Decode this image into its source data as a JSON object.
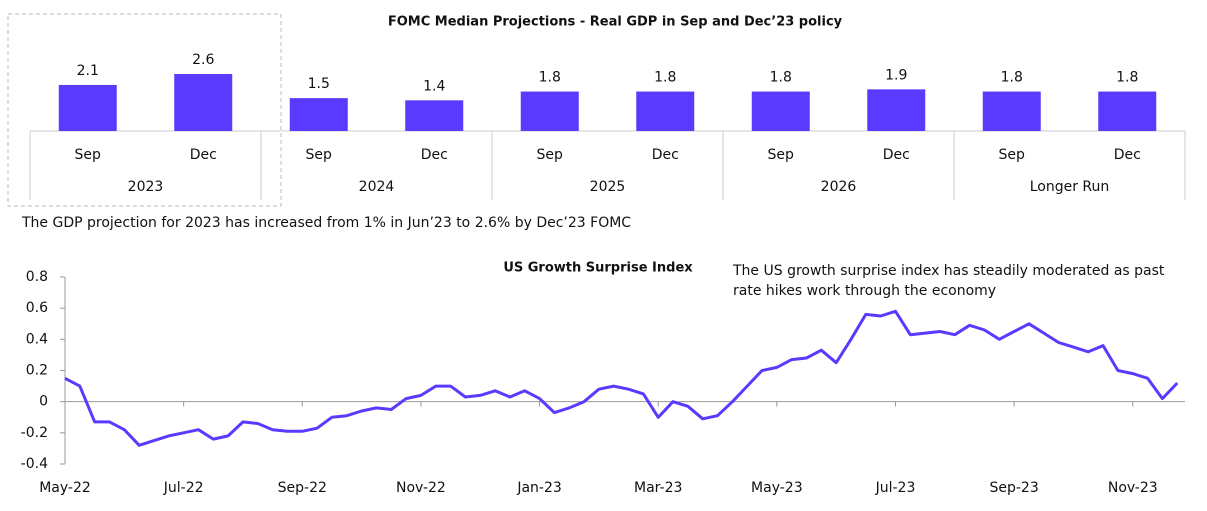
{
  "chart_data": [
    {
      "type": "bar",
      "title": "FOMC Median Projections - Real GDP in Sep and Dec’23 policy",
      "categories": [
        "Sep",
        "Dec",
        "Sep",
        "Dec",
        "Sep",
        "Dec",
        "Sep",
        "Dec",
        "Sep",
        "Dec"
      ],
      "groups": [
        "2023",
        "2024",
        "2025",
        "2026",
        "Longer Run"
      ],
      "values": [
        2.1,
        2.6,
        1.5,
        1.4,
        1.8,
        1.8,
        1.8,
        1.9,
        1.8,
        1.8
      ],
      "color": "#5b3aff",
      "note": "The GDP projection for 2023 has increased from 1% in Jun’23 to 2.6% by Dec’23 FOMC"
    },
    {
      "type": "line",
      "title": "US Growth Surprise Index",
      "annotation": [
        "The US growth surprise index has steadily moderated as past",
        "rate hikes work through the economy"
      ],
      "categories": [
        "May-22",
        null,
        null,
        null,
        null,
        null,
        null,
        null,
        "Jul-22",
        null,
        null,
        null,
        null,
        null,
        null,
        null,
        "Sep-22",
        null,
        null,
        null,
        null,
        null,
        null,
        null,
        "Nov-22",
        null,
        null,
        null,
        null,
        null,
        null,
        null,
        "Jan-23",
        null,
        null,
        null,
        null,
        null,
        null,
        null,
        "Mar-23",
        null,
        null,
        null,
        null,
        null,
        null,
        null,
        "May-23",
        null,
        null,
        null,
        null,
        null,
        null,
        null,
        "Jul-23",
        null,
        null,
        null,
        null,
        null,
        null,
        null,
        "Sep-23",
        null,
        null,
        null,
        null,
        null,
        null,
        null,
        "Nov-23",
        null,
        null,
        null
      ],
      "values": [
        0.15,
        0.1,
        -0.13,
        -0.13,
        -0.18,
        -0.28,
        -0.25,
        -0.22,
        -0.2,
        -0.18,
        -0.24,
        -0.22,
        -0.13,
        -0.14,
        -0.18,
        -0.19,
        -0.19,
        -0.17,
        -0.1,
        -0.09,
        -0.06,
        -0.04,
        -0.05,
        0.02,
        0.04,
        0.1,
        0.1,
        0.03,
        0.04,
        0.07,
        0.03,
        0.07,
        0.02,
        -0.07,
        -0.04,
        0.0,
        0.08,
        0.1,
        0.08,
        0.05,
        -0.1,
        0.0,
        -0.03,
        -0.11,
        -0.09,
        0.0,
        0.1,
        0.2,
        0.22,
        0.27,
        0.28,
        0.33,
        0.25,
        0.4,
        0.56,
        0.55,
        0.58,
        0.43,
        0.44,
        0.45,
        0.43,
        0.49,
        0.46,
        0.4,
        0.45,
        0.5,
        0.44,
        0.38,
        0.35,
        0.32,
        0.36,
        0.2,
        0.18,
        0.15,
        0.02,
        0.12
      ],
      "color": "#5b3aff",
      "ylim": [
        -0.4,
        0.8
      ],
      "yticks": [
        -0.4,
        -0.2,
        0.0,
        0.2,
        0.4,
        0.6,
        0.8
      ]
    }
  ]
}
